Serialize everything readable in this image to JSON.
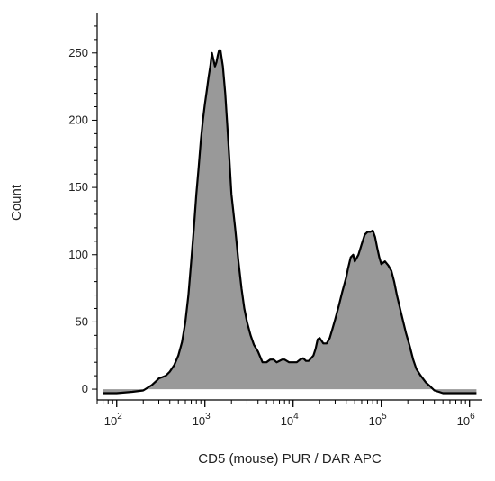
{
  "chart_data": {
    "type": "area",
    "title": "",
    "xlabel": "CD5 (mouse) PUR / DAR APC",
    "ylabel": "Count",
    "xscale": "log",
    "xlim": [
      60,
      1400000
    ],
    "ylim": [
      -8,
      280
    ],
    "x_ticks": [
      {
        "base": "10",
        "exp": "2",
        "value": 100
      },
      {
        "base": "10",
        "exp": "3",
        "value": 1000
      },
      {
        "base": "10",
        "exp": "4",
        "value": 10000
      },
      {
        "base": "10",
        "exp": "5",
        "value": 100000
      },
      {
        "base": "10",
        "exp": "6",
        "value": 1000000
      }
    ],
    "y_ticks": [
      0,
      50,
      100,
      150,
      200,
      250
    ],
    "grid": false,
    "legend": "none",
    "fill_color": "#999999",
    "line_color": "#000000",
    "series": [
      {
        "x": [
          70,
          100,
          150,
          200,
          250,
          280,
          300,
          330,
          360,
          400,
          450,
          500,
          550,
          600,
          650,
          700,
          750,
          800,
          850,
          900,
          950,
          1000,
          1050,
          1100,
          1150,
          1200,
          1250,
          1300,
          1350,
          1400,
          1450,
          1500,
          1600,
          1700,
          1800,
          1900,
          2000,
          2200,
          2400,
          2600,
          2800,
          3000,
          3300,
          3600,
          4000,
          4500,
          5000,
          5500,
          6000,
          6500,
          7000,
          7500,
          8000,
          9000,
          10000,
          11000,
          12000,
          13000,
          14000,
          15000,
          16000,
          17000,
          18000,
          19000,
          20000,
          22000,
          24000,
          26000,
          28000,
          30000,
          33000,
          36000,
          40000,
          42000,
          45000,
          48000,
          50000,
          55000,
          60000,
          65000,
          70000,
          75000,
          80000,
          85000,
          90000,
          95000,
          100000,
          110000,
          120000,
          130000,
          140000,
          150000,
          170000,
          190000,
          210000,
          230000,
          250000,
          280000,
          320000,
          360000,
          400000,
          450000,
          500000,
          600000,
          800000,
          1200000
        ],
        "y": [
          -3,
          -3,
          -2,
          -1,
          3,
          6,
          8,
          9,
          10,
          13,
          18,
          25,
          35,
          50,
          70,
          95,
          120,
          145,
          165,
          185,
          200,
          212,
          222,
          232,
          240,
          250,
          245,
          240,
          243,
          248,
          252,
          252,
          240,
          220,
          195,
          170,
          145,
          120,
          95,
          75,
          60,
          50,
          40,
          33,
          28,
          20,
          20,
          22,
          22,
          20,
          21,
          22,
          22,
          20,
          20,
          20,
          22,
          23,
          21,
          21,
          23,
          25,
          30,
          37,
          38,
          34,
          34,
          38,
          45,
          52,
          62,
          72,
          83,
          90,
          98,
          100,
          95,
          100,
          108,
          115,
          117,
          117,
          118,
          113,
          105,
          98,
          93,
          95,
          92,
          88,
          80,
          70,
          55,
          42,
          32,
          22,
          15,
          10,
          5,
          2,
          -1,
          -2,
          -3,
          -3,
          -3,
          -3
        ]
      }
    ]
  }
}
